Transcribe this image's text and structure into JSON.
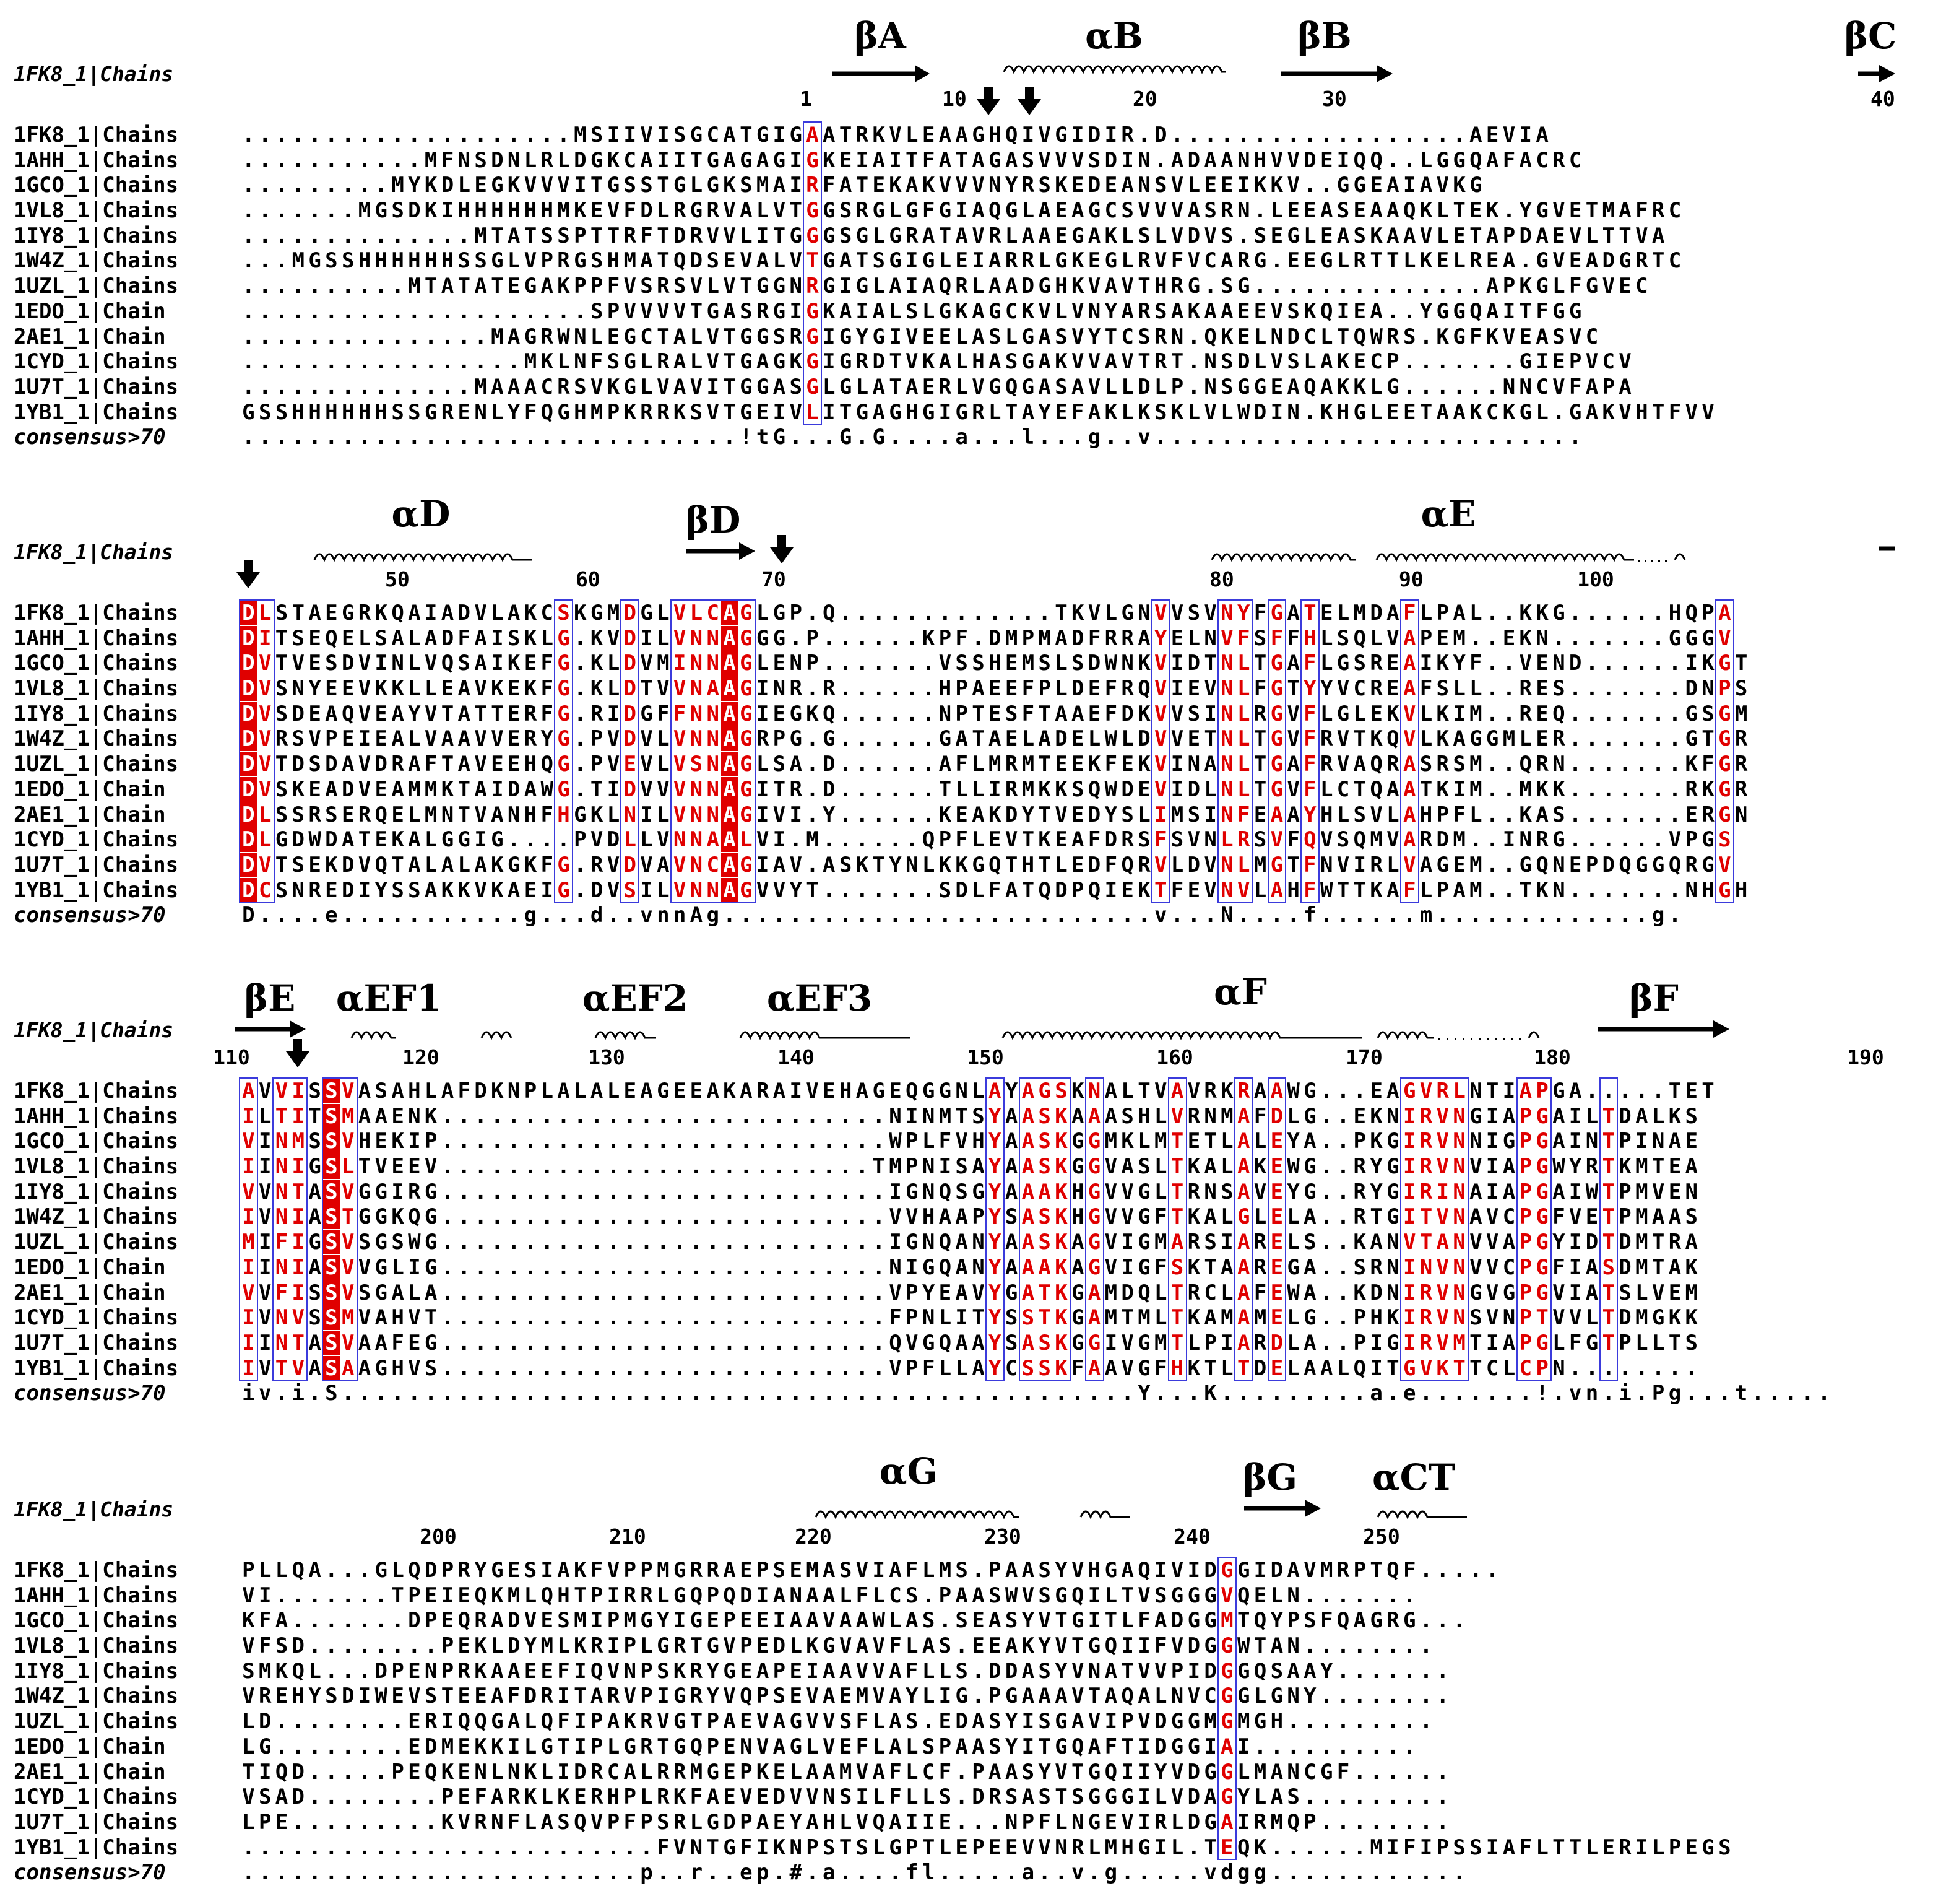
{
  "reference_label": "1FK8_1|Chains",
  "sequence_names": [
    "1FK8_1|Chains",
    "1AHH_1|Chains",
    "1GCO_1|Chains",
    "1VL8_1|Chains",
    "1IY8_1|Chains",
    "1W4Z_1|Chains",
    "1UZL_1|Chains",
    "1EDO_1|Chain",
    "2AE1_1|Chain",
    "1CYD_1|Chains",
    "1U7T_1|Chains",
    "1YB1_1|Chains"
  ],
  "consensus_label": "consensus>70",
  "colors": {
    "identical_bg": "#e00000",
    "similar_text": "#e00000",
    "box": "#3b3bdc"
  },
  "blocks": [
    {
      "id": "block1",
      "ss_labels": [
        {
          "text": "βA",
          "kind": "strand"
        },
        {
          "text": "αB",
          "kind": "helix"
        },
        {
          "text": "βB",
          "kind": "strand"
        },
        {
          "text": "βC",
          "kind": "strand"
        }
      ],
      "ticks": [
        "1",
        "10",
        "20",
        "30",
        "40"
      ],
      "rows": [
        "....................MSIIVISGCATGIGAATRKVLEAAGHQIVGIDIR.D..................AEVIA",
        "...........MFNSDNLRLDGKCAIITGAGAGIGKEIAITFATAGASVVVSDIN.ADAANHVVDEIQQ..LGGQAFACRC",
        ".........MYKDLEGKVVVITGSSTGLGKSMAIRFATEKAKVVVNYRSKEDEANSVLEEIKKV..GGEAIAVKG",
        ".......MGSDKIHHHHHHMKEVFDLRGRVALVTGGSRGLGFGIAQGLAEAGCSVVVASRN.LEEASEAAQKLTEK.YGVETMAFRC",
        "..............MTATSSPTTRFTDRVVLITGGGSGLGRATAVRLAAEGAKLSLVDVS.SEGLEASKAAVLETAPDAEVLTTVA",
        "...MGSSHHHHHHSSGLVPRGSHMATQDSEVALVTGATSGIGLEIARRLGKEGLRVFVCARG.EEGLRTTLKELREA.GVEADGRTC",
        "..........MTATATEGAKPPFVSRSVLVTGGNRGIGLAIAQRLAADGHKVAVTHRG.SG..............APKGLFGVEC",
        ".....................SPVVVVTGASRGIGKAIALSLGKAGCKVLVNYARSAKAAEEVSKQIEA..YGGQAITFGG",
        "...............MAGRWNLEGCTALVTGGSRGIGYGIVEELASLGASVYTCSRN.QKELNDCLTQWRS.KGFKVEASVC",
        ".................MKLNFSGLRALVTGAGKGIGRDTVKALHASGAKVVAVTRT.NSDLVSLAKECP.......GIEPVCV",
        "..............MAAACRSVKGLVAVITGGASGLGLATAERLVGQGASAVLLDLP.NSGGEAQAKKLG......NNCVFAPA",
        "GSSHHHHHHSSGRENLYFQGHMPKRRKSVTGEIVLITGAGHGIGRLTAYEFAKLKSKLVLWDIN.KHGLEETAAKCKGL.GAKVHTFVV"
      ],
      "consensus": "..............................!tG...G.G....a...l...g..v.........................."
    },
    {
      "id": "block2",
      "ss_labels": [
        {
          "text": "αD",
          "kind": "helix"
        },
        {
          "text": "βD",
          "kind": "strand"
        },
        {
          "text": "αE",
          "kind": "helix"
        }
      ],
      "ticks": [
        "50",
        "60",
        "70",
        "80",
        "90",
        "100"
      ],
      "rows": [
        "DLSTAEGRKQAIADVLAKCSKGMDGLVLCAGLGP.Q.............TKVLGNVVSVNYFGATELMDAFLPAL..KKG......HQPA",
        "DITSEQELSALADFAISKLG.KVDILVNNAGGG.P......KPF.DMPMADFRRAYELNVFSFFHLSQLVAPEM..EKN.......GGGV",
        "DVTVESDVINLVQSAIKEFG.KLDVMINNAGLENP.......VSSHEMSLSDWNKVIDTNLTGAFLGSREAIKYF..VEND......IKGT",
        "DVSNYEEVKKLLEAVKEKFG.KLDTVVNAAGINR.R......HPAEEFPLDEFRQVIEVNLFGTYYVCREAFSLL..RES.......DNPS",
        "DVSDEAQVEAYVTATTERFG.RIDGFFNNAGIEGKQ......NPTESFTAAEFDKVVSINLRGVFLGLEKVLKIM..REQ.......GSGM",
        "DVRSVPEIEALVAAVVERYG.PVDVLVNNAGRPG.G......GATAELADELWLDVVETNLTGVFRVTKQVLKAGGMLER.......GTGR",
        "DVTDSDAVDRAFTAVEEHQG.PVEVLVSNAGLSA.D......AFLMRMTEEKFEKVINANLTGAFRVAQRASRSM..QRN.......KFGR",
        "DVSKEADVEAMMKTAIDAWG.TIDVVVNNAGITR.D......TLLIRMKKSQWDEVIDLNLTGVFLCTQAATKIM..MKK.......RKGR",
        "DLSSRSERQELMNTVANHFHGKLNILVNNAGIVI.Y......KEAKDYTVEDYSLIMSINFEAAYHLSVLAHPFL..KAS.......ERGN",
        "DLGDWDATEKALGGIG....PVDLLVNNAALVI.M......QPFLEVTKEAFDRSFSVNLRSVFQVSQMVARDM..INRG......VPGS",
        "DVTSEKDVQTALALAKGKFG.RVDVAVNCAGIAV.ASKTYNLKKGQTHTLEDFQRVLDVNLMGTFNVIRLVAGEM..GQNEPDQGGQRGV",
        "DCSNREDIYSSAKKVKAEIG.DVSILVNNAGVVYT.......SDLFATQDPQIEKTFEVNVLAHFWTTKAFLPAM..TKN.......NHGH"
      ],
      "consensus": "D....e...........g...d..vnnAg..........................v...N....f......m.............g."
    },
    {
      "id": "block3",
      "ss_labels": [
        {
          "text": "βE",
          "kind": "strand"
        },
        {
          "text": "αEF1",
          "kind": "helix"
        },
        {
          "text": "αEF2",
          "kind": "helix"
        },
        {
          "text": "αEF3",
          "kind": "helix"
        },
        {
          "text": "αF",
          "kind": "helix"
        },
        {
          "text": "βF",
          "kind": "strand"
        }
      ],
      "ticks": [
        "110",
        "120",
        "130",
        "140",
        "150",
        "160",
        "170",
        "180",
        "190"
      ],
      "rows": [
        "AVVISSVASAHLAFDKNPLALALEAGEEAKARAIVEHAGEQGGNLAYAGSKNALTVAVRKRAAWG...EAGVRLNTIAPGA.....TET",
        "ILTITSMAAENK...........................NINMTSYAASKAAASHLVRNMAFDLG..EKNIRVNGIAPGAILTDALKS",
        "VINMSSVHEKIP...........................WPLFVHYAASKGGMKLMTETLALEYA..PKGIRVNNIGPGAINTPINAE",
        "IINIGSLTVEEV..........................TMPNISAYAASKGGVASLTKALAKEWG..RYGIRVNVIAPGWYRTKMTEA",
        "VVNTASVGGIRG...........................IGNQSGYAAAKHGVVGLTRNSAVEYG..RYGIRINAIAPGAIWTPMVEN",
        "IVNIASTGGKQG...........................VVHAAPYSASKHGVVGFTKALGLELA..RTGITVNAVCPGFVETPMAAS",
        "MIFIGSVSGSWG...........................IGNQANYAASKAGVIGMARSIARELS..KANVTANVVAPGYIDTDMTRA",
        "IINIASVVGLIG...........................NIGQANYAAAKAGVIGFSKTAAREGA..SRNINVNVVCPGFIASDMTAK",
        "VVFISSVSGALA...........................VPYEAVYGATKGAMDQLTRCLAFEWA..KDNIRVNGVGPGVIATSLVEM",
        "IVNVSSMVAHVT...........................FPNLITYSSTKGAMTMLTKAMAMELG..PHKIRVNSVNPTVVLTDMGKK",
        "IINTASVAAFEG...........................QVGQAAYSASKGGIVGMTLPIARDLA..PIGIRVMTIAPGLFGTPLLTS",
        "IVTVASAAGHVS...........................VPFLLAYCSSKFAAVGFHKTLTDELAALQITGVKTTCLCPN........"
      ],
      "consensus": "iv.i.S................................................Y...K.........a.e.......!.vn.i.Pg...t....."
    },
    {
      "id": "block4",
      "ss_labels": [
        {
          "text": "αG",
          "kind": "helix"
        },
        {
          "text": "βG",
          "kind": "strand"
        },
        {
          "text": "αCT",
          "kind": "helix"
        }
      ],
      "ticks": [
        "200",
        "210",
        "220",
        "230",
        "240",
        "250"
      ],
      "rows": [
        "PLLQA...GLQDPRYGESIAKFVPPMGRRAEPSEMASVIAFLMS.PAASYVHGAQIVIDGGIDAVMRPTQF.....",
        "VI.......TPEIEQKMLQHTPIRRLGQPQDIANAALFLCS.PAASWVSGQILTVSGGGVQELN.......",
        "KFA.......DPEQRADVESMIPMGYIGEPEEIAAVAAWLAS.SEASYVTGITLFADGGMTQYPSFQAGRG...",
        "VFSD........PEKLDYMLKRIPLGRTGVPEDLKGVAVFLAS.EEAKYVTGQIIFVDGGWTAN........",
        "SMKQL...DPENPRKAAEEFIQVNPSKRYGEAPEIAAVVAFLLS.DDASYVNATVVPIDGGQSAAY.......",
        "VREHYSDIWEVSTEEAFDRITARVPIGRYVQPSEVAEMVAYLIG.PGAAAVTAQALNVCGGLGNY........",
        "LD........ERIQQGALQFIPAKRVGTPAEVAGVVSFLAS.EDASYISGAVIPVDGGMGMGH.........",
        "LG........EDMEKKILGTIPLGRTGQPENVAGLVEFLALSPAASYITGQAFTIDGGIAI..........",
        "TIQD.....PEQKENLNKLIDRCALRRMGEPKELAAMVAFLCF.PAASYVTGQIIYVDGGLMANCGF......",
        "VSAD........PEFARKLKERHPLRKFAEVEDVVNSILFLLS.DRSASTSGGGILVDAGYLAS.........",
        "LPE.........KVRNFLASQVPFPSRLGDPAEYAHLVQAIIE...NPFLNGEVIRLDGAIRMQP........",
        ".........................FVNTGFIKNPSTSLGPTLEPEEVVNRLMHGIL.TEQK......MIFIPSSIAFLTTLERILPEGS"
      ],
      "consensus": "........................p..r..ep.#.a....fl.....a..v.g.....vdgg............"
    }
  ]
}
